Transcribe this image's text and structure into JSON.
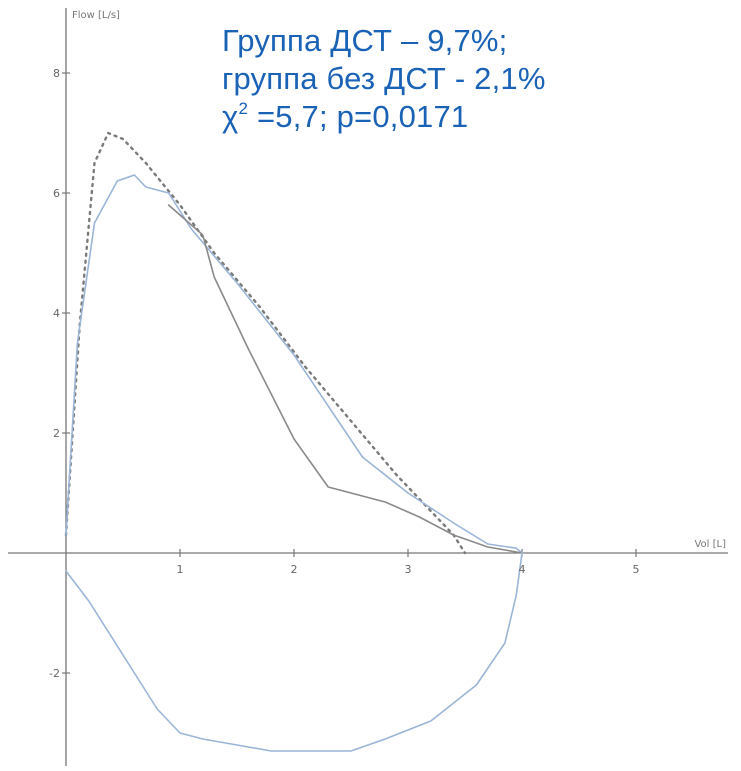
{
  "chart_data": {
    "type": "line",
    "xlabel": "Vol [L]",
    "ylabel": "Flow [L/s]",
    "xlim": [
      -0.5,
      5.6
    ],
    "ylim": [
      -3.3,
      9.2
    ],
    "x_ticks": [
      "1",
      "2",
      "3",
      "4",
      "5"
    ],
    "x_tick_values": [
      1,
      2,
      3,
      4,
      5
    ],
    "y_ticks": [
      "8",
      "6",
      "4",
      "2",
      "-2"
    ],
    "y_tick_values": [
      8,
      6,
      4,
      2,
      -2
    ],
    "grid": false,
    "series": [
      {
        "style": "dotted",
        "color": "#7a7a7a",
        "x": [
          0.0,
          0.12,
          0.25,
          0.37,
          0.5,
          0.7,
          1.0,
          1.3,
          1.7,
          2.1,
          2.5,
          2.9,
          3.2,
          3.4,
          3.5
        ],
        "y": [
          0.3,
          3.8,
          6.5,
          7.0,
          6.9,
          6.5,
          5.8,
          5.0,
          4.1,
          3.1,
          2.2,
          1.3,
          0.7,
          0.3,
          0.0
        ]
      },
      {
        "style": "solid",
        "color": "#9ab5d6",
        "x": [
          0.0,
          0.1,
          0.25,
          0.45,
          0.6,
          0.7,
          0.9,
          1.0,
          1.1,
          1.5,
          2.0,
          2.6,
          3.0,
          3.4,
          3.7,
          3.95,
          4.0
        ],
        "y": [
          0.3,
          3.5,
          5.5,
          6.2,
          6.3,
          6.1,
          6.0,
          5.7,
          5.4,
          4.5,
          3.3,
          1.6,
          1.0,
          0.5,
          0.15,
          0.08,
          0.0
        ]
      },
      {
        "style": "solid",
        "color": "#8a8a8a",
        "x": [
          0.9,
          1.2,
          1.3,
          1.6,
          2.0,
          2.3,
          2.5,
          2.8,
          3.1,
          3.4,
          3.7,
          4.0
        ],
        "y": [
          5.8,
          5.3,
          4.6,
          3.4,
          1.9,
          1.1,
          1.0,
          0.85,
          0.6,
          0.3,
          0.1,
          0.0
        ]
      },
      {
        "style": "solid",
        "color": "#9ab5d6",
        "x": [
          0.0,
          0.2,
          0.5,
          0.8,
          1.0,
          1.2,
          1.5,
          1.8,
          2.1,
          2.5,
          2.8,
          3.2,
          3.6,
          3.85,
          3.95,
          4.0
        ],
        "y": [
          -0.3,
          -0.8,
          -1.7,
          -2.6,
          -3.0,
          -3.1,
          -3.2,
          -3.3,
          -3.3,
          -3.3,
          -3.1,
          -2.8,
          -2.2,
          -1.5,
          -0.7,
          0.0
        ]
      }
    ]
  },
  "annotation": {
    "line1": "Группа ДСТ – 9,7%;",
    "line2": "группа без ДСТ - 2,1%",
    "line3_chi": "χ",
    "line3_sup": "2",
    "line3_rest": " =5,7; p=0,0171"
  }
}
